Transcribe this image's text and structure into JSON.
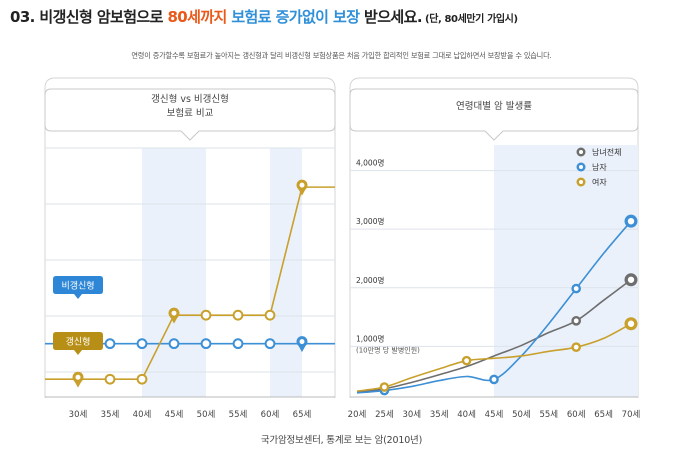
{
  "title": {
    "prefix": "03. 비갱신형 암보험으로 ",
    "highlight1": "80세까지",
    "middle": " ",
    "highlight2": "보험료 증가없이 보장",
    "suffix": " 받으세요.",
    "note": " (단, 80세만기 가입시)"
  },
  "description": "연령이 증가할수록 보험료가 높아지는 갱신형과 달리 비갱신형 보험상품은 처음 가입한 합리적인 보험료 그대로 납입하면서 보장받을 수 있습니다.",
  "source": "국가암정보센터, 통계로 보는 암(2010년)",
  "colors": {
    "blue": "#3d8fd6",
    "gold": "#c9a02c",
    "gray": "#6e6e6e",
    "shade": "#eaf1fa"
  },
  "chart_data": [
    {
      "type": "line",
      "title_line1": "갱신형 vs 비갱신형",
      "title_line2": "보험료 비교",
      "categories": [
        "30세",
        "35세",
        "40세",
        "45세",
        "50세",
        "55세",
        "60세",
        "65세"
      ],
      "series": [
        {
          "name": "비갱신형",
          "color": "#3d8fd6",
          "values": [
            1,
            1,
            1,
            1,
            1,
            1,
            1,
            1
          ]
        },
        {
          "name": "갱신형",
          "color": "#c9a02c",
          "values": [
            0,
            0,
            0,
            1.8,
            1.8,
            1.8,
            1.8,
            5.4
          ]
        }
      ],
      "ylim": [
        -0.5,
        6.5
      ],
      "grid": true,
      "shaded_ranges": [
        [
          "40세",
          "50세"
        ],
        [
          "60세",
          "65세"
        ]
      ]
    },
    {
      "type": "line",
      "title": "연령대별 암 발생률",
      "categories": [
        "20세",
        "25세",
        "30세",
        "35세",
        "40세",
        "45세",
        "50세",
        "55세",
        "60세",
        "65세",
        "70세"
      ],
      "ylabels": [
        {
          "value": 4000,
          "label": "4,000명"
        },
        {
          "value": 3000,
          "label": "3,000명"
        },
        {
          "value": 2000,
          "label": "2,000명"
        },
        {
          "value": 1000,
          "label": "1,000명"
        }
      ],
      "ylabel_note": "(10만명 당 발병인원)",
      "ylim": [
        0,
        4300
      ],
      "grid": true,
      "shaded_range": [
        "45세",
        "70세"
      ],
      "legend_position": "top-right",
      "series": [
        {
          "name": "남녀전체",
          "color": "#6e6e6e",
          "marker_idx": [
            1,
            8,
            10
          ],
          "values": [
            80,
            140,
            250,
            380,
            520,
            700,
            880,
            1100,
            1300,
            1650,
            2000
          ]
        },
        {
          "name": "남자",
          "color": "#3d8fd6",
          "marker_idx": [
            1,
            5,
            8,
            10
          ],
          "values": [
            70,
            110,
            180,
            280,
            350,
            300,
            700,
            1250,
            1850,
            2450,
            3000
          ]
        },
        {
          "name": "여자",
          "color": "#c9a02c",
          "marker_idx": [
            1,
            4,
            8,
            10
          ],
          "values": [
            100,
            170,
            330,
            480,
            620,
            660,
            700,
            780,
            850,
            1000,
            1250
          ]
        }
      ]
    }
  ]
}
